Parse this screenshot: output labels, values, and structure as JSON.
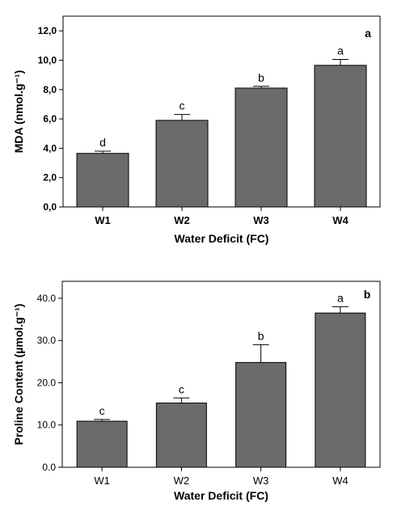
{
  "chart_data": [
    {
      "type": "bar",
      "panel_label": "a",
      "categories": [
        "W1",
        "W2",
        "W3",
        "W4"
      ],
      "values": [
        3.65,
        5.9,
        8.1,
        9.65
      ],
      "errors": [
        0.15,
        0.4,
        0.12,
        0.4
      ],
      "significance_letters": [
        "d",
        "c",
        "b",
        "a"
      ],
      "xlabel": "Water Deficit (FC)",
      "ylabel": "MDA (nmol.g⁻¹)",
      "ylim": [
        0,
        13
      ],
      "yticks": [
        0,
        2,
        4,
        6,
        8,
        10,
        12
      ],
      "ytick_labels": [
        "0,0",
        "2,0",
        "4,0",
        "6,0",
        "8,0",
        "10,0",
        "12,0"
      ],
      "grid": false,
      "bar_color": "#6b6b6b"
    },
    {
      "type": "bar",
      "panel_label": "b",
      "categories": [
        "W1",
        "W2",
        "W3",
        "W4"
      ],
      "values": [
        10.9,
        15.2,
        24.8,
        36.5
      ],
      "errors": [
        0.4,
        1.2,
        4.2,
        1.5
      ],
      "significance_letters": [
        "c",
        "c",
        "b",
        "a"
      ],
      "xlabel": "Water Deficit (FC)",
      "ylabel": "Proline Content (µmol.g⁻¹)",
      "ylim": [
        0,
        44
      ],
      "yticks": [
        0,
        10,
        20,
        30,
        40
      ],
      "ytick_labels": [
        "0.0",
        "10.0",
        "20.0",
        "30.0",
        "40.0"
      ],
      "grid": false,
      "bar_color": "#6b6b6b"
    }
  ]
}
